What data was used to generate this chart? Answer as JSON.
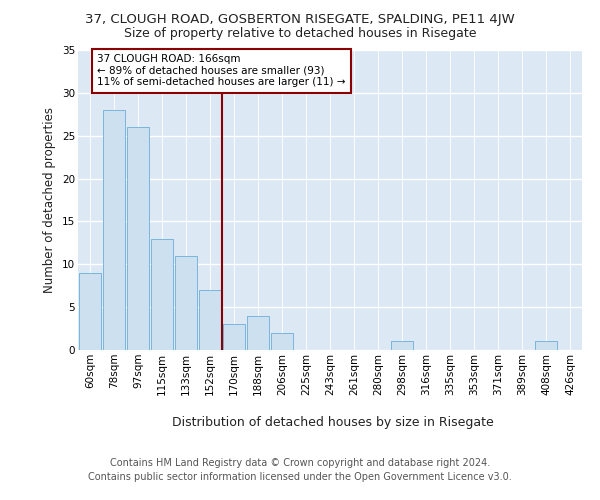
{
  "title1": "37, CLOUGH ROAD, GOSBERTON RISEGATE, SPALDING, PE11 4JW",
  "title2": "Size of property relative to detached houses in Risegate",
  "xlabel": "Distribution of detached houses by size in Risegate",
  "ylabel": "Number of detached properties",
  "footer1": "Contains HM Land Registry data © Crown copyright and database right 2024.",
  "footer2": "Contains public sector information licensed under the Open Government Licence v3.0.",
  "categories": [
    "60sqm",
    "78sqm",
    "97sqm",
    "115sqm",
    "133sqm",
    "152sqm",
    "170sqm",
    "188sqm",
    "206sqm",
    "225sqm",
    "243sqm",
    "261sqm",
    "280sqm",
    "298sqm",
    "316sqm",
    "335sqm",
    "353sqm",
    "371sqm",
    "389sqm",
    "408sqm",
    "426sqm"
  ],
  "values": [
    9,
    28,
    26,
    13,
    11,
    7,
    3,
    4,
    2,
    0,
    0,
    0,
    0,
    1,
    0,
    0,
    0,
    0,
    0,
    1,
    0
  ],
  "bar_color": "#cce0f0",
  "bar_edgecolor": "#6baed6",
  "background_color": "#dde8f5",
  "grid_color": "#ffffff",
  "vline_x_index": 6,
  "vline_color": "#8b0000",
  "annotation_line1": "37 CLOUGH ROAD: 166sqm",
  "annotation_line2": "← 89% of detached houses are smaller (93)",
  "annotation_line3": "11% of semi-detached houses are larger (11) →",
  "annotation_box_color": "#8b0000",
  "ylim": [
    0,
    35
  ],
  "yticks": [
    0,
    5,
    10,
    15,
    20,
    25,
    30,
    35
  ],
  "title1_fontsize": 9.5,
  "title2_fontsize": 9,
  "xlabel_fontsize": 9,
  "ylabel_fontsize": 8.5,
  "tick_fontsize": 7.5,
  "annotation_fontsize": 7.5,
  "footer_fontsize": 7
}
